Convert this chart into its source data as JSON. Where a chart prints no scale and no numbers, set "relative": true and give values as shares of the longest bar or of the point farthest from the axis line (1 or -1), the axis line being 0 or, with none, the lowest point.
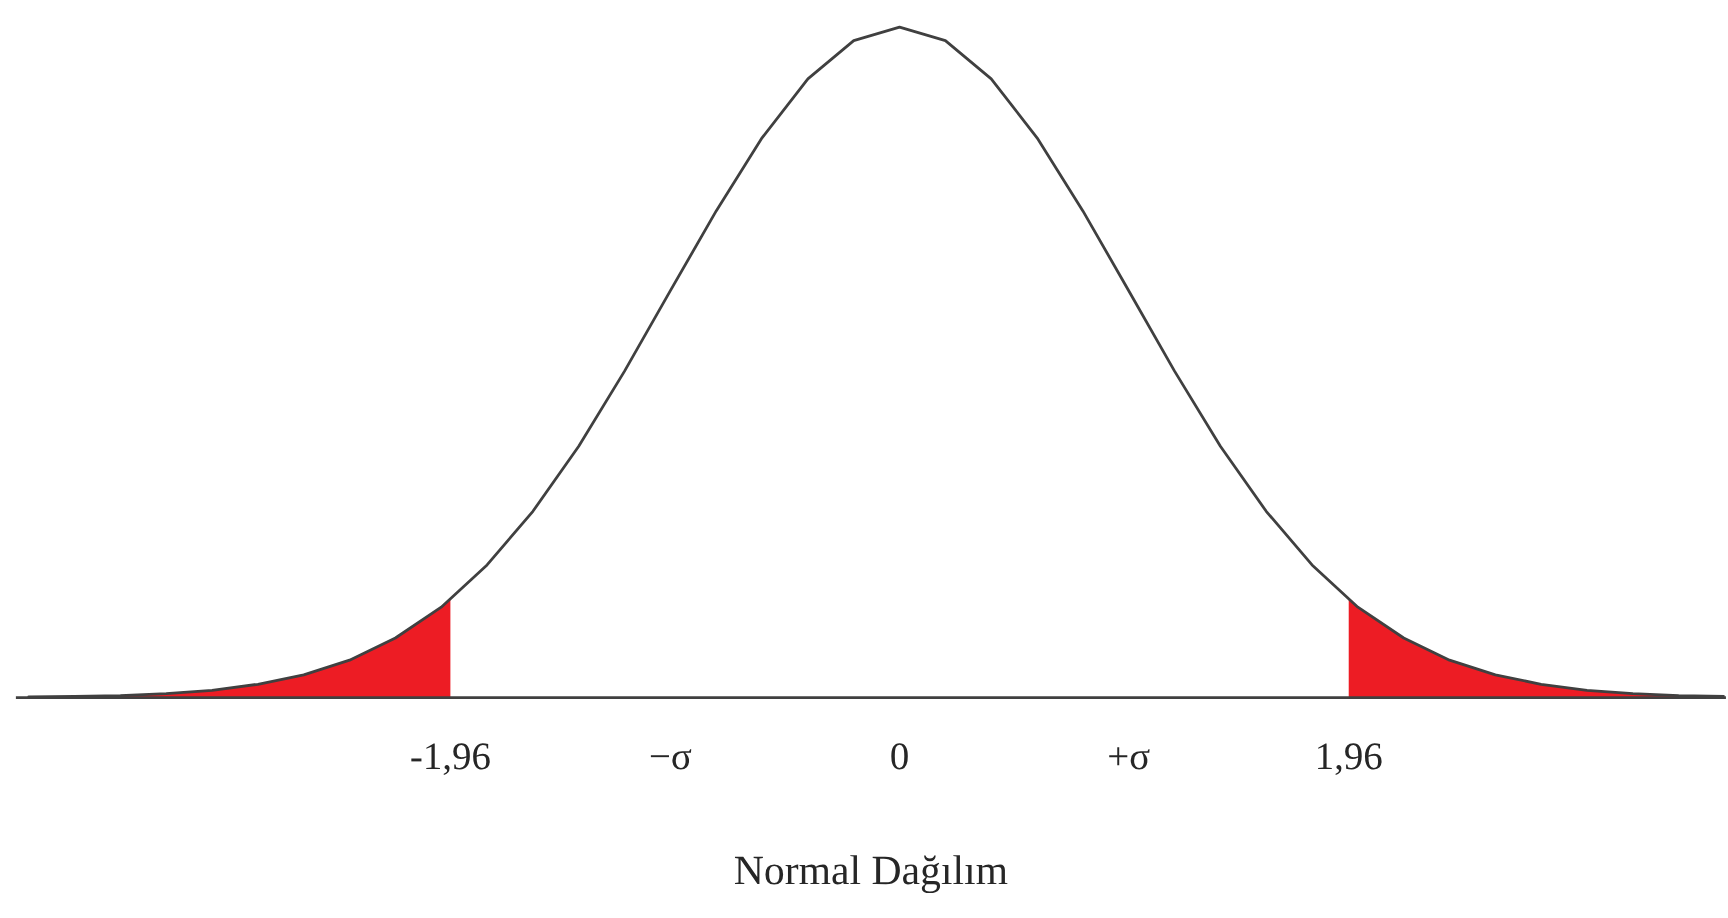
{
  "chart_data": {
    "type": "line",
    "xlabel": "Normal Dağılım",
    "relative": true,
    "grid": false,
    "xlim": [
      -3.85,
      3.6
    ],
    "xticks": [
      {
        "value": -1.96,
        "label": "-1,96"
      },
      {
        "value": -1,
        "label": "−σ"
      },
      0,
      {
        "value": 1,
        "label": "+σ"
      },
      {
        "value": 1.96,
        "label": "1,96"
      }
    ],
    "series": [
      {
        "type": "area",
        "color": "#ed1c24",
        "x": [
          -3.4,
          -3.2,
          -3.0,
          -2.8,
          -2.6,
          -2.4,
          -2.2,
          -2.0,
          -1.96
        ],
        "values": [
          0.003,
          0.006,
          0.011,
          0.02,
          0.034,
          0.056,
          0.089,
          0.135,
          0.147
        ]
      },
      {
        "type": "area",
        "color": "#ed1c24",
        "x": [
          1.96,
          2.0,
          2.2,
          2.4,
          2.6,
          2.8,
          3.0,
          3.2,
          3.4
        ],
        "values": [
          0.147,
          0.135,
          0.089,
          0.056,
          0.034,
          0.02,
          0.011,
          0.006,
          0.003
        ]
      },
      {
        "color": "#404040",
        "x": [
          -3.8,
          -3.6,
          -3.4,
          -3.2,
          -3.0,
          -2.8,
          -2.6,
          -2.4,
          -2.2,
          -2.0,
          -1.8,
          -1.6,
          -1.4,
          -1.2,
          -1.0,
          -0.8,
          -0.6,
          -0.4,
          -0.2,
          0.0,
          0.2,
          0.4,
          0.6,
          0.8,
          1.0,
          1.2,
          1.4,
          1.6,
          1.8,
          2.0,
          2.2,
          2.4,
          2.6,
          2.8,
          3.0,
          3.2,
          3.4,
          3.6
        ],
        "values": [
          0.001,
          0.002,
          0.003,
          0.006,
          0.011,
          0.02,
          0.034,
          0.056,
          0.089,
          0.135,
          0.198,
          0.278,
          0.375,
          0.487,
          0.607,
          0.726,
          0.835,
          0.923,
          0.98,
          1.0,
          0.98,
          0.923,
          0.835,
          0.726,
          0.607,
          0.487,
          0.375,
          0.278,
          0.198,
          0.135,
          0.089,
          0.056,
          0.034,
          0.02,
          0.011,
          0.006,
          0.003,
          0.002
        ]
      }
    ]
  }
}
